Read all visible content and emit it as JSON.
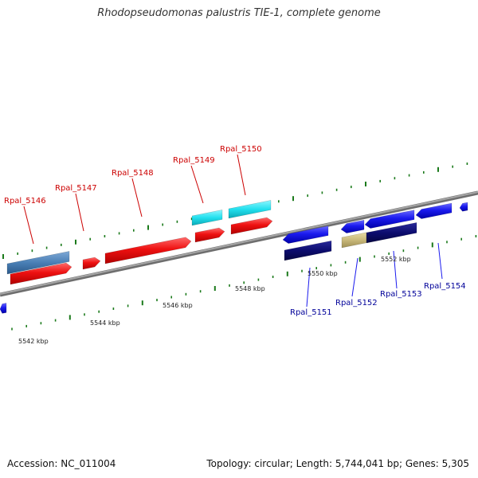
{
  "title": "Rhodopseudomonas palustris TIE-1, complete genome",
  "footer": {
    "accession": "Accession: NC_011004",
    "topology": "Topology: circular; Length: 5,744,041 bp; Genes: 5,305"
  },
  "colors": {
    "forward_gene": "#ee1111",
    "reverse_gene": "#1a1aee",
    "forward_label": "#cc0000",
    "reverse_label": "#000099",
    "tick": "#1b7a1b",
    "backbone": "#8a8a8a",
    "cyan_feature": "#22e0ee",
    "steelblue_feature": "#4a7fb5",
    "navy_feature": "#0c0c6e",
    "khaki_feature": "#c8b87a"
  },
  "scale_labels": [
    "5542 kbp",
    "5544 kbp",
    "5546 kbp",
    "5548 kbp",
    "5550 kbp",
    "5552 kbp"
  ],
  "genes_forward": [
    "Rpal_5146",
    "Rpal_5147",
    "Rpal_5148",
    "Rpal_5149",
    "Rpal_5150"
  ],
  "genes_reverse": [
    "Rpal_5151",
    "Rpal_5152",
    "Rpal_5153",
    "Rpal_5154"
  ]
}
